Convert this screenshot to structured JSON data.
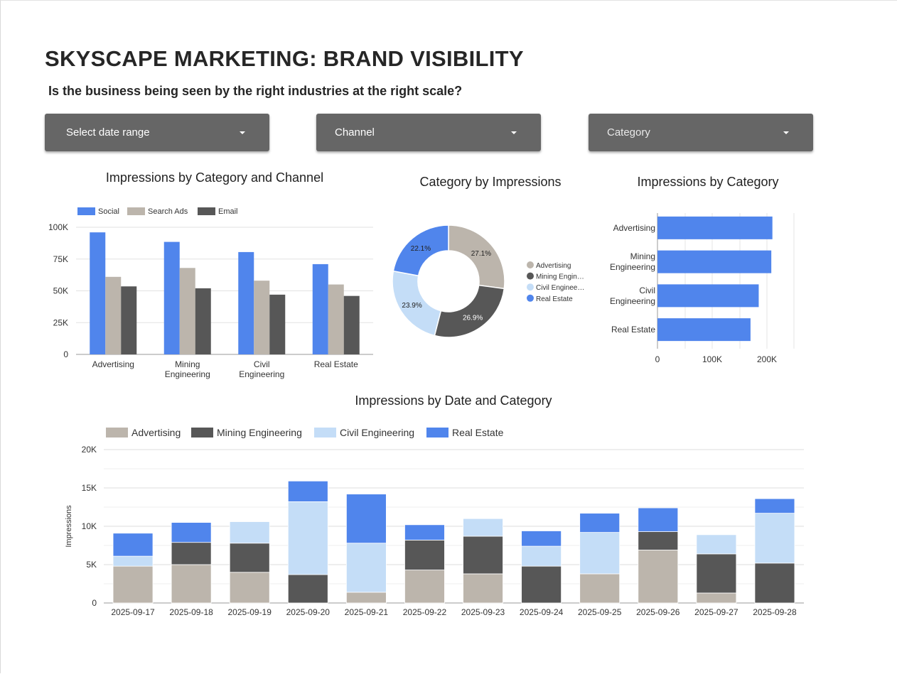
{
  "header": {
    "title": "SKYSCAPE MARKETING: BRAND VISIBILITY",
    "subtitle": "Is the business being seen by the right industries at the right scale?"
  },
  "filters": {
    "date_range": "Select date range",
    "channel": "Channel",
    "category": "Category"
  },
  "colors": {
    "social": "#5085ec",
    "search_ads": "#bcb5ac",
    "email": "#575757",
    "advertising": "#bcb5ac",
    "mining_engineering": "#575757",
    "civil_engineering": "#c4ddf7",
    "real_estate": "#5085ec"
  },
  "chart_data": [
    {
      "id": "impressions-by-category-and-channel",
      "type": "bar",
      "title": "Impressions by Category and Channel",
      "categories": [
        "Advertising",
        "Mining Engineering",
        "Civil Engineering",
        "Real Estate"
      ],
      "category_lines": [
        [
          "Advertising"
        ],
        [
          "Mining",
          "Engineering"
        ],
        [
          "Civil",
          "Engineering"
        ],
        [
          "Real Estate"
        ]
      ],
      "series": [
        {
          "name": "Social",
          "values": [
            96000,
            88500,
            80500,
            71000
          ]
        },
        {
          "name": "Search Ads",
          "values": [
            61000,
            68000,
            58000,
            55000
          ]
        },
        {
          "name": "Email",
          "values": [
            53500,
            52000,
            47000,
            46000
          ]
        }
      ],
      "ylim": [
        0,
        100000
      ],
      "yticks": [
        "0",
        "25K",
        "50K",
        "75K",
        "100K"
      ],
      "legend": "top-left",
      "grid": true
    },
    {
      "id": "category-by-impressions",
      "type": "pie",
      "title": "Category by Impressions",
      "labels": [
        "Advertising",
        "Mining Engineering",
        "Civil Engineering",
        "Real Estate"
      ],
      "legend_labels": [
        "Advertising",
        "Mining Engin…",
        "Civil Enginee…",
        "Real Estate"
      ],
      "values": [
        27.1,
        26.9,
        23.9,
        22.1
      ],
      "value_labels": [
        "27.1%",
        "26.9%",
        "23.9%",
        "22.1%"
      ],
      "donut": true,
      "legend": "right"
    },
    {
      "id": "impressions-by-category",
      "type": "bar",
      "orientation": "horizontal",
      "title": "Impressions by Category",
      "categories": [
        "Advertising",
        "Mining Engineering",
        "Civil Engineering",
        "Real Estate"
      ],
      "category_lines": [
        [
          "Advertising"
        ],
        [
          "Mining",
          "Engineering"
        ],
        [
          "Civil",
          "Engineering"
        ],
        [
          "Real Estate"
        ]
      ],
      "values": [
        210000,
        208000,
        185000,
        170000
      ],
      "xlim": [
        0,
        250000
      ],
      "xticks": [
        "0",
        "100K",
        "200K"
      ],
      "legend": "none"
    },
    {
      "id": "impressions-by-date-and-category",
      "type": "bar",
      "stacked": true,
      "title": "Impressions by Date and Category",
      "ylabel": "Impressions",
      "categories": [
        "2025-09-17",
        "2025-09-18",
        "2025-09-19",
        "2025-09-20",
        "2025-09-21",
        "2025-09-22",
        "2025-09-23",
        "2025-09-24",
        "2025-09-25",
        "2025-09-26",
        "2025-09-27",
        "2025-09-28"
      ],
      "series": [
        {
          "name": "Advertising",
          "values": [
            4800,
            5000,
            4000,
            0,
            1400,
            4300,
            3800,
            0,
            3800,
            6900,
            1300,
            0
          ]
        },
        {
          "name": "Mining Engineering",
          "values": [
            0,
            2900,
            3800,
            3700,
            0,
            3900,
            4900,
            4800,
            0,
            2400,
            5100,
            5200
          ]
        },
        {
          "name": "Civil Engineering",
          "values": [
            1300,
            0,
            2800,
            9500,
            6400,
            0,
            2300,
            2600,
            5400,
            0,
            2500,
            6500
          ]
        },
        {
          "name": "Real Estate",
          "values": [
            3000,
            2600,
            0,
            2700,
            6400,
            2000,
            0,
            2000,
            2500,
            3100,
            0,
            1900
          ]
        }
      ],
      "ylim": [
        0,
        20000
      ],
      "yticks": [
        "0",
        "5K",
        "10K",
        "15K",
        "20K"
      ],
      "legend": "top-left",
      "grid": true
    }
  ]
}
